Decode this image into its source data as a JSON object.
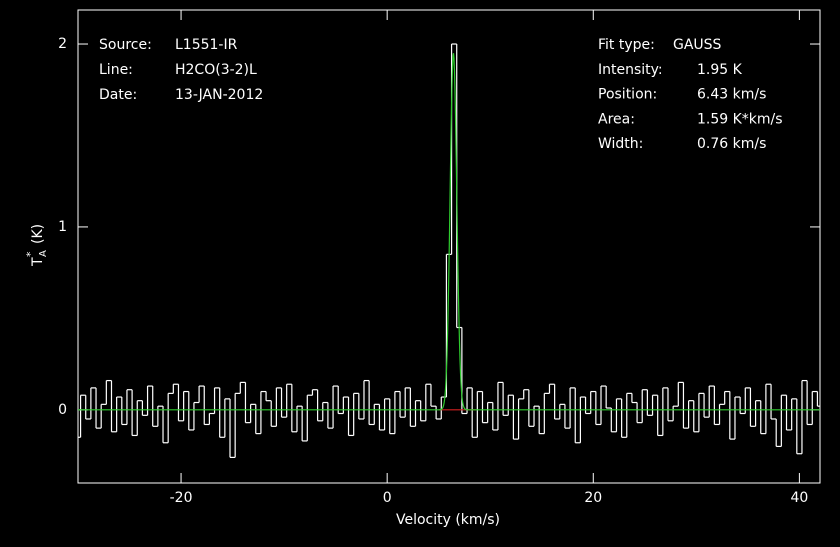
{
  "chart_data": {
    "type": "spectrum",
    "x_label": "Velocity (km/s)",
    "y_label": {
      "main": "T",
      "sub": "A",
      "sup": "*",
      "unit": "(K)"
    },
    "info": [
      {
        "name": "Source:",
        "text": "L1551-IR"
      },
      {
        "name": "Line:",
        "text": "H2CO(3-2)L"
      },
      {
        "name": "Date:",
        "text": "13-JAN-2012"
      }
    ],
    "fit_type": {
      "name": "Fit type:",
      "text": "GAUSS"
    },
    "fit": [
      {
        "name": "Intensity:",
        "value": 1.95,
        "label": "1.95 K"
      },
      {
        "name": "Position:",
        "value": 6.43,
        "label": "6.43 km/s"
      },
      {
        "name": "Area:",
        "value": 1.59,
        "label": "1.59 K*km/s"
      },
      {
        "name": "Width:",
        "value": 0.76,
        "label": "0.76 km/s"
      }
    ],
    "fit_color": "#2ecc2e",
    "fit_window": [
      5,
      8.6
    ],
    "fit_window_color": "#d22020",
    "color": "#ffffff",
    "x": [
      -30,
      -29.5,
      -29,
      -28.5,
      -28,
      -27.5,
      -27,
      -26.5,
      -26,
      -25.5,
      -25,
      -24.5,
      -24,
      -23.5,
      -23,
      -22.5,
      -22,
      -21.5,
      -21,
      -20.5,
      -20,
      -19.5,
      -19,
      -18.5,
      -18,
      -17.5,
      -17,
      -16.5,
      -16,
      -15.5,
      -15,
      -14.5,
      -14,
      -13.5,
      -13,
      -12.5,
      -12,
      -11.5,
      -11,
      -10.5,
      -10,
      -9.5,
      -9,
      -8.5,
      -8,
      -7.5,
      -7,
      -6.5,
      -6,
      -5.5,
      -5,
      -4.5,
      -4,
      -3.5,
      -3,
      -2.5,
      -2,
      -1.5,
      -1,
      -0.5,
      0,
      0.5,
      1,
      1.5,
      2,
      2.5,
      3,
      3.5,
      4,
      4.5,
      5,
      5.5,
      6,
      6.5,
      7,
      7.5,
      8,
      8.5,
      9,
      9.5,
      10,
      10.5,
      11,
      11.5,
      12,
      12.5,
      13,
      13.5,
      14,
      14.5,
      15,
      15.5,
      16,
      16.5,
      17,
      17.5,
      18,
      18.5,
      19,
      19.5,
      20,
      20.5,
      21,
      21.5,
      22,
      22.5,
      23,
      23.5,
      24,
      24.5,
      25,
      25.5,
      26,
      26.5,
      27,
      27.5,
      28,
      28.5,
      29,
      29.5,
      30,
      30.5,
      31,
      31.5,
      32,
      32.5,
      33,
      33.5,
      34,
      34.5,
      35,
      35.5,
      36,
      36.5,
      37,
      37.5,
      38,
      38.5,
      39,
      39.5,
      40,
      40.5,
      41,
      41.5,
      42
    ],
    "values": [
      -0.15,
      0.08,
      -0.05,
      0.12,
      -0.1,
      0.03,
      0.16,
      -0.12,
      0.07,
      -0.08,
      0.11,
      -0.14,
      0.05,
      -0.03,
      0.13,
      -0.09,
      0.02,
      -0.18,
      0.09,
      0.14,
      -0.06,
      0.1,
      -0.11,
      0.04,
      0.13,
      -0.08,
      -0.02,
      0.12,
      -0.15,
      0.06,
      -0.26,
      0.09,
      0.15,
      -0.07,
      0.03,
      -0.13,
      0.1,
      0.05,
      -0.09,
      0.12,
      -0.04,
      0.14,
      -0.12,
      0.02,
      -0.17,
      0.08,
      0.11,
      -0.06,
      0.04,
      -0.1,
      0.13,
      -0.02,
      0.07,
      -0.14,
      0.09,
      -0.05,
      0.16,
      -0.08,
      0.03,
      -0.11,
      0.06,
      -0.13,
      0.1,
      -0.04,
      0.12,
      -0.09,
      0.05,
      -0.06,
      0.14,
      0.02,
      -0.05,
      0.07,
      0.85,
      2.0,
      0.45,
      -0.02,
      0.12,
      -0.15,
      0.1,
      -0.07,
      0.04,
      -0.11,
      0.15,
      -0.03,
      0.08,
      -0.16,
      0.06,
      0.11,
      -0.09,
      0.02,
      -0.13,
      0.09,
      0.14,
      -0.05,
      0.03,
      -0.1,
      0.12,
      -0.18,
      0.07,
      -0.02,
      0.1,
      -0.08,
      0.13,
      0.01,
      -0.12,
      0.06,
      -0.15,
      0.09,
      0.04,
      -0.07,
      0.11,
      -0.03,
      0.08,
      -0.14,
      0.12,
      -0.06,
      0.02,
      0.15,
      -0.1,
      0.05,
      -0.12,
      0.09,
      -0.04,
      0.13,
      -0.08,
      0.03,
      0.1,
      -0.16,
      0.07,
      -0.02,
      0.12,
      -0.09,
      0.05,
      -0.13,
      0.14,
      -0.05,
      -0.2,
      0.08,
      -0.11,
      0.06,
      -0.24,
      0.16,
      -0.08,
      0.1,
      0.02
    ],
    "xlim": [
      -30,
      42
    ],
    "xticks": [
      -20,
      0,
      20,
      40
    ],
    "ylim": [
      -0.4,
      2.186
    ],
    "yticks": [
      0,
      1,
      2
    ]
  }
}
